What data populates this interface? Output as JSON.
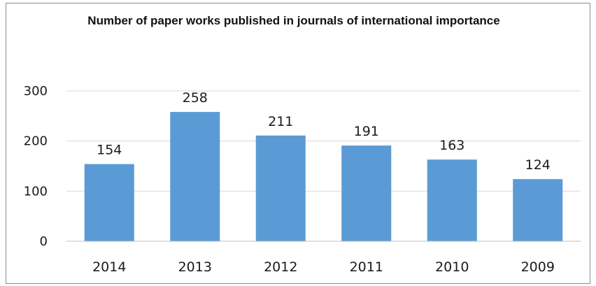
{
  "chart_data": {
    "type": "bar",
    "title": "Number of paper works published  in journals of international importance",
    "categories": [
      "2014",
      "2013",
      "2012",
      "2011",
      "2010",
      "2009"
    ],
    "values": [
      154,
      258,
      211,
      191,
      163,
      124
    ],
    "data_labels": [
      "154",
      "258",
      "211",
      "191",
      "163",
      "124"
    ],
    "y_ticks": [
      "0",
      "100",
      "200",
      "300"
    ],
    "ylim": [
      0,
      300
    ],
    "grid": true,
    "legend": "none",
    "bar_color": "#5b9bd5",
    "grid_color": "#d9d9d9"
  }
}
